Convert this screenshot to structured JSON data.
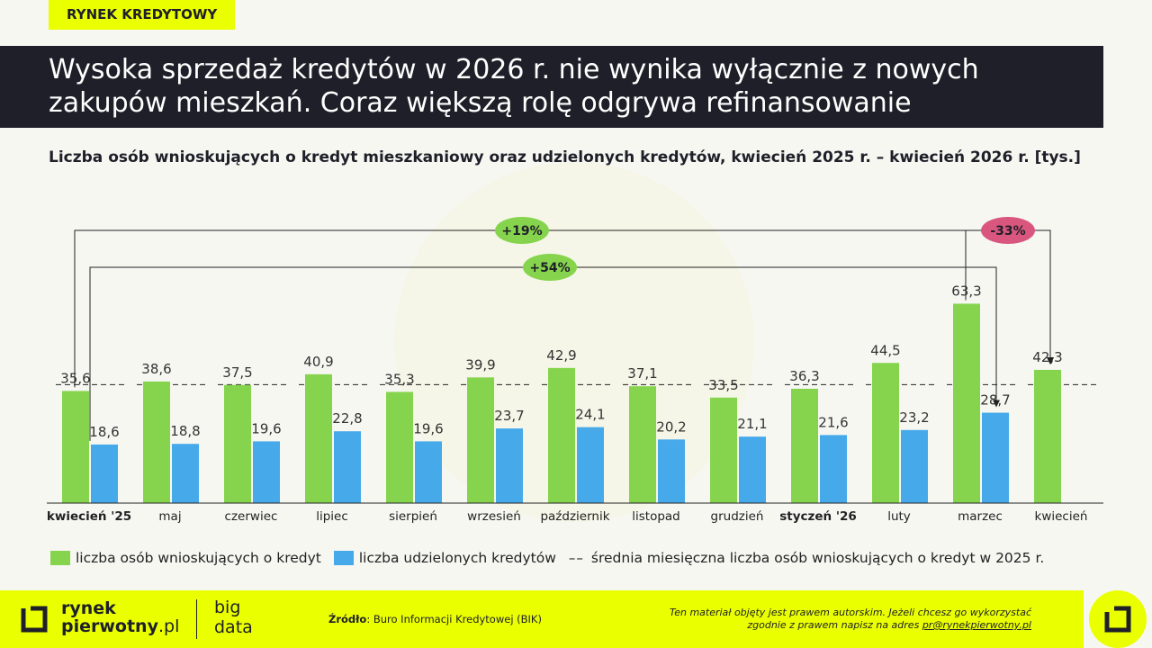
{
  "header": {
    "tag": "RYNEK KREDYTOWY",
    "title": "Wysoka sprzedaż kredytów w 2026 r. nie wynika wyłącznie z nowych zakupów mieszkań. Coraz większą rolę odgrywa refinansowanie",
    "subtitle": "Liczba osób wnioskujących o kredyt mieszkaniowy oraz udzielonych kredytów, kwiecień 2025 r. – kwiecień 2026 r. [tys.]"
  },
  "colors": {
    "applicants": "#86d44e",
    "loans": "#45a9ea",
    "positive_badge": "#86d44e",
    "negative_badge": "#d9577f",
    "accent": "#eaff00",
    "dark": "#1e1f28"
  },
  "chart_data": {
    "type": "bar",
    "categories": [
      "kwiecień '25",
      "maj",
      "czerwiec",
      "lipiec",
      "sierpień",
      "wrzesień",
      "październik",
      "listopad",
      "grudzień",
      "styczeń '26",
      "luty",
      "marzec",
      "kwiecień"
    ],
    "bold_categories": [
      "kwiecień '25",
      "styczeń '26"
    ],
    "series": [
      {
        "name": "liczba osób wnioskujących o kredyt",
        "values": [
          35.6,
          38.6,
          37.5,
          40.9,
          35.3,
          39.9,
          42.9,
          37.1,
          33.5,
          36.3,
          44.5,
          63.3,
          42.3
        ]
      },
      {
        "name": "liczba udzielonych kredytów",
        "values": [
          18.6,
          18.8,
          19.6,
          22.8,
          19.6,
          23.7,
          24.1,
          20.2,
          21.1,
          21.6,
          23.2,
          28.7,
          null
        ]
      }
    ],
    "average_line": {
      "name": "średnia miesięczna liczba osób wnioskujących o kredyt w 2025 r.",
      "value": 37.6
    },
    "annotations": [
      {
        "label": "+19%",
        "from_category": "kwiecień '25",
        "from_series": 0,
        "to_category": "kwiecień",
        "to_series": 0,
        "sign": "positive"
      },
      {
        "label": "+54%",
        "from_category": "kwiecień '25",
        "from_series": 1,
        "to_category": "marzec",
        "to_series": 1,
        "sign": "positive"
      },
      {
        "label": "-33%",
        "from_category": "marzec",
        "from_series": 0,
        "to_category": "kwiecień",
        "to_series": 0,
        "sign": "negative"
      }
    ],
    "ylim": [
      0,
      70
    ],
    "grid": false
  },
  "legend": {
    "applicants": "liczba osób wnioskujących o kredyt",
    "loans": "liczba udzielonych kredytów",
    "average_dash": "––",
    "average": "średnia miesięczna liczba osób wnioskujących o kredyt w 2025 r."
  },
  "footer": {
    "logo_line1": "rynek",
    "logo_line2": "pierwotny",
    "logo_line2_suffix": ".pl",
    "bigdata_line1": "big",
    "bigdata_line2": "data",
    "source_label": "Źródło",
    "source_text": ": Buro Informacji Kredytowej (BIK)",
    "copyright_line1": "Ten materiał objęty jest prawem autorskim. Jeżeli chcesz go wykorzystać",
    "copyright_line2": "zgodnie z prawem napisz na adres ",
    "copyright_email": "pr@rynekpierwotny.pl"
  }
}
